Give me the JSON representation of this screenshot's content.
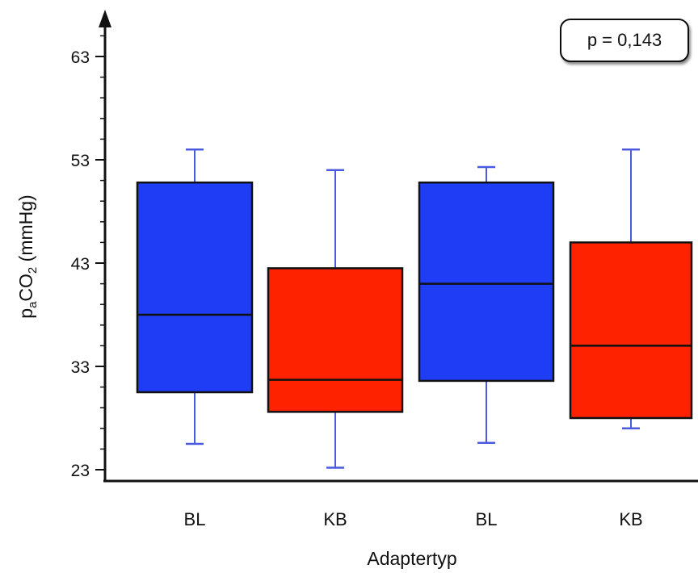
{
  "chart_data": {
    "type": "box",
    "xlabel": "Adaptertyp",
    "ylabel": {
      "prefix": "p",
      "prefix_sub": "a",
      "main": "CO",
      "main_sub": "2",
      "unit": " (mmHg)"
    },
    "y_ticks": [
      23,
      33,
      43,
      53,
      63
    ],
    "ylim": [
      22,
      66
    ],
    "annotation": "p = 0,143",
    "grid": false,
    "colors": {
      "BL": "#1f3df5",
      "KB": "#ff2200",
      "whisker": "#4b5be0",
      "edge": "#111111"
    },
    "boxes": [
      {
        "category": "BL",
        "min": 25.5,
        "q1": 30.5,
        "median": 38.0,
        "q3": 50.8,
        "max": 54.0
      },
      {
        "category": "KB",
        "min": 23.2,
        "q1": 28.6,
        "median": 31.7,
        "q3": 42.5,
        "max": 52.0
      },
      {
        "category": "BL",
        "min": 25.6,
        "q1": 31.6,
        "median": 41.0,
        "q3": 50.8,
        "max": 52.3
      },
      {
        "category": "KB",
        "min": 27.0,
        "q1": 28.0,
        "median": 35.0,
        "q3": 45.0,
        "max": 54.0
      }
    ]
  }
}
